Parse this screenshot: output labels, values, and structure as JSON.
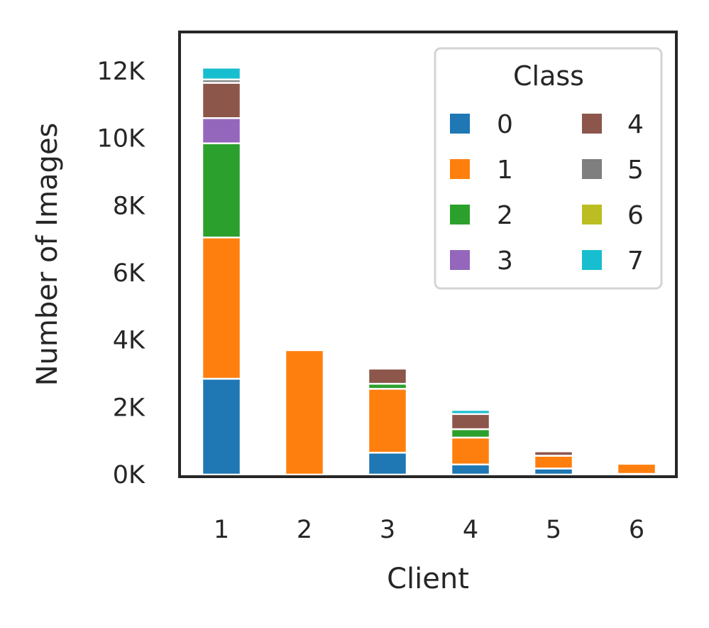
{
  "chart_data": {
    "type": "bar",
    "stacked": true,
    "xlabel": "Client",
    "ylabel": "Number of Images",
    "categories": [
      "1",
      "2",
      "3",
      "4",
      "5",
      "6"
    ],
    "ylim": [
      0,
      12400
    ],
    "yticks": [
      0,
      2000,
      4000,
      6000,
      8000,
      10000,
      12000
    ],
    "ytick_labels": [
      "0K",
      "2K",
      "4K",
      "6K",
      "8K",
      "10K",
      "12K"
    ],
    "grid": false,
    "legend": {
      "title": "Class",
      "placement": "top-right",
      "columns": 2
    },
    "series": [
      {
        "name": "0",
        "color": "#1f77b4",
        "values": [
          2850,
          0,
          650,
          300,
          180,
          20
        ]
      },
      {
        "name": "1",
        "color": "#ff7f0e",
        "values": [
          4200,
          3700,
          1900,
          800,
          380,
          300
        ]
      },
      {
        "name": "2",
        "color": "#2ca02c",
        "values": [
          2800,
          0,
          150,
          250,
          0,
          0
        ]
      },
      {
        "name": "3",
        "color": "#9467bd",
        "values": [
          750,
          0,
          0,
          0,
          0,
          0
        ]
      },
      {
        "name": "4",
        "color": "#8c564b",
        "values": [
          1050,
          50,
          450,
          450,
          130,
          0
        ]
      },
      {
        "name": "5",
        "color": "#7f7f7f",
        "values": [
          100,
          0,
          0,
          0,
          0,
          0
        ]
      },
      {
        "name": "6",
        "color": "#bcbd22",
        "values": [
          0,
          0,
          0,
          0,
          0,
          0
        ]
      },
      {
        "name": "7",
        "color": "#17becf",
        "values": [
          350,
          0,
          0,
          120,
          0,
          0
        ]
      }
    ]
  }
}
